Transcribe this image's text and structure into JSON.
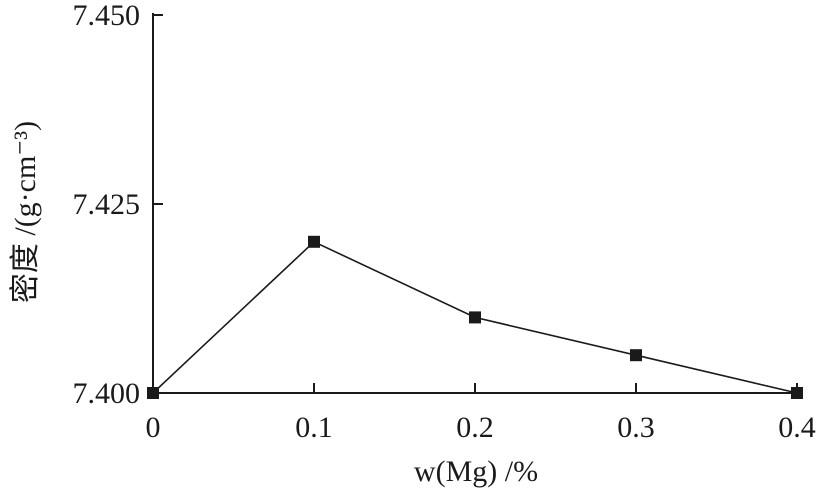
{
  "chart_data": {
    "type": "line",
    "xlabel": "w(Mg) /%",
    "ylabel": "密度 /(g·cm⁻³)",
    "x": [
      0,
      0.1,
      0.2,
      0.3,
      0.4
    ],
    "xticks": [
      "0",
      "0.1",
      "0.2",
      "0.3",
      "0.4"
    ],
    "yticks": [
      "7.400",
      "7.425",
      "7.450"
    ],
    "ytick_values": [
      7.4,
      7.425,
      7.45
    ],
    "xlim": [
      0,
      0.4
    ],
    "ylim": [
      7.4,
      7.45
    ],
    "grid": false,
    "series": [
      {
        "marker": "square",
        "color": "#1a1a1a",
        "values": [
          7.4,
          7.42,
          7.41,
          7.405,
          7.4
        ]
      }
    ]
  }
}
